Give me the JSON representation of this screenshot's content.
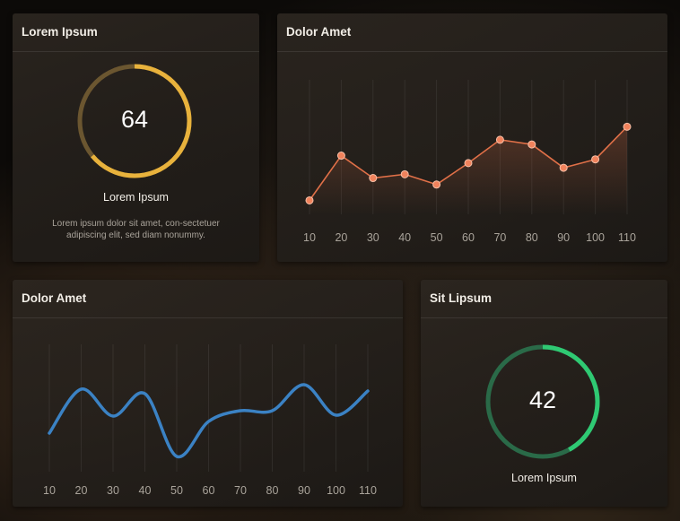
{
  "cards": {
    "gauge1": {
      "title": "Lorem Ipsum",
      "value": "64",
      "progress": 0.64,
      "label": "Lorem Ipsum",
      "description": "Lorem ipsum dolor sit amet, con-sectetuer adipiscing elit, sed diam nonummy.",
      "color": "#e8b23c",
      "track_color": "#6b5630"
    },
    "line1": {
      "title": "Dolor Amet"
    },
    "line2": {
      "title": "Dolor Amet"
    },
    "gauge2": {
      "title": "Sit Lipsum",
      "value": "42",
      "progress": 0.42,
      "label": "Lorem Ipsum",
      "color": "#2fc973",
      "track_color": "#2a6a48"
    }
  },
  "chart_data": [
    {
      "type": "line",
      "x": [
        10,
        20,
        30,
        40,
        50,
        60,
        70,
        80,
        90,
        100,
        110
      ],
      "series": [
        {
          "values": [
            -12,
            36,
            12,
            16,
            5,
            28,
            53,
            48,
            23,
            32,
            67
          ],
          "color": "#e07048"
        }
      ],
      "ylim": [
        -25,
        100
      ],
      "grid": "vertical",
      "markers": true,
      "area_fill": true
    },
    {
      "type": "line",
      "x": [
        10,
        20,
        30,
        40,
        50,
        60,
        70,
        80,
        90,
        100,
        110
      ],
      "series": [
        {
          "values": [
            -9,
            40,
            10,
            35,
            -35,
            4,
            16,
            16,
            45,
            11,
            38
          ],
          "color": "#3b82c4"
        }
      ],
      "ylim": [
        -60,
        100
      ],
      "grid": "vertical",
      "smooth": true
    }
  ]
}
